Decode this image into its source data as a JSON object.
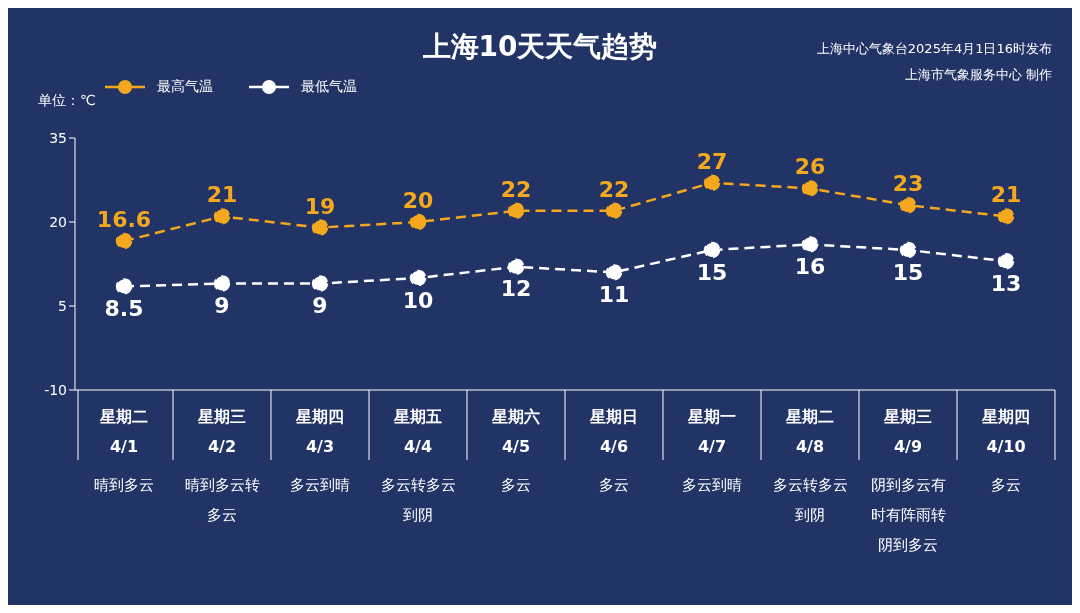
{
  "chart_data": {
    "type": "line",
    "title": "上海10天天气趋势",
    "ylabel": "单位：℃",
    "categories": [
      "星期二\n4/1",
      "星期三\n4/2",
      "星期四\n4/3",
      "星期五\n4/4",
      "星期六\n4/5",
      "星期日\n4/6",
      "星期一\n4/7",
      "星期二\n4/8",
      "星期三\n4/9",
      "星期四\n4/10"
    ],
    "series": [
      {
        "name": "最高气温",
        "color": "#f4a81d",
        "values": [
          16.6,
          21,
          19,
          20,
          22,
          22,
          27,
          26,
          23,
          21
        ]
      },
      {
        "name": "最低气温",
        "color": "#ffffff",
        "values": [
          8.5,
          9,
          9,
          10,
          12,
          11,
          15,
          16,
          15,
          13
        ]
      }
    ],
    "ylim": [
      -10,
      35
    ],
    "yticks": [
      -10,
      5,
      20,
      35
    ],
    "grid": false,
    "legend": "top left",
    "marker": "circle",
    "line_style": "dashed",
    "data_labels": true,
    "annotations": [
      "上海中心气象台2025年4月1日16时发布",
      "上海市气象服务中心 制作",
      "晴到多云",
      "晴到多云转多云",
      "多云到晴",
      "多云转多云到阴",
      "多云",
      "多云",
      "多云到晴",
      "多云转多云到阴",
      "阴到多云有时有阵雨转阴到多云",
      "多云"
    ]
  }
}
